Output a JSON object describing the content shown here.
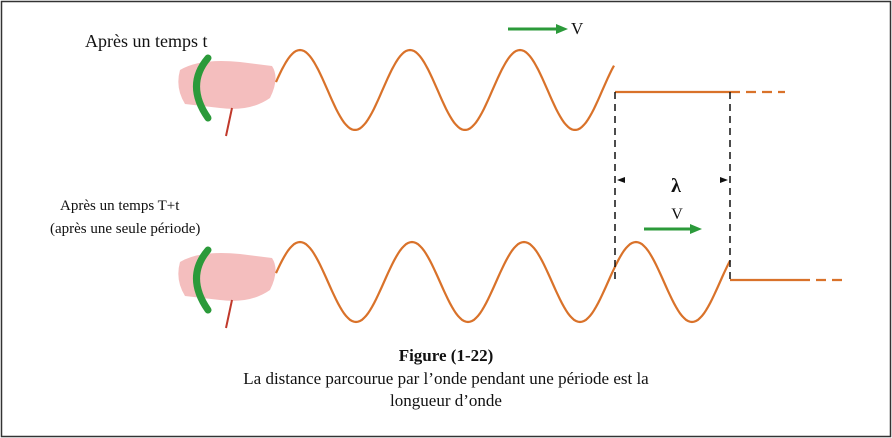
{
  "labels": {
    "top_state": "Après un temps t",
    "top_velocity": "V",
    "bottom_state": "Après un temps T+t",
    "bottom_note": "(après une seule période)",
    "wavelength": "λ",
    "bottom_velocity": "V"
  },
  "caption": {
    "title": "Figure (1-22)",
    "lines": [
      "La distance parcourue par l’onde pendant une période est la",
      "longueur d’onde"
    ]
  }
}
